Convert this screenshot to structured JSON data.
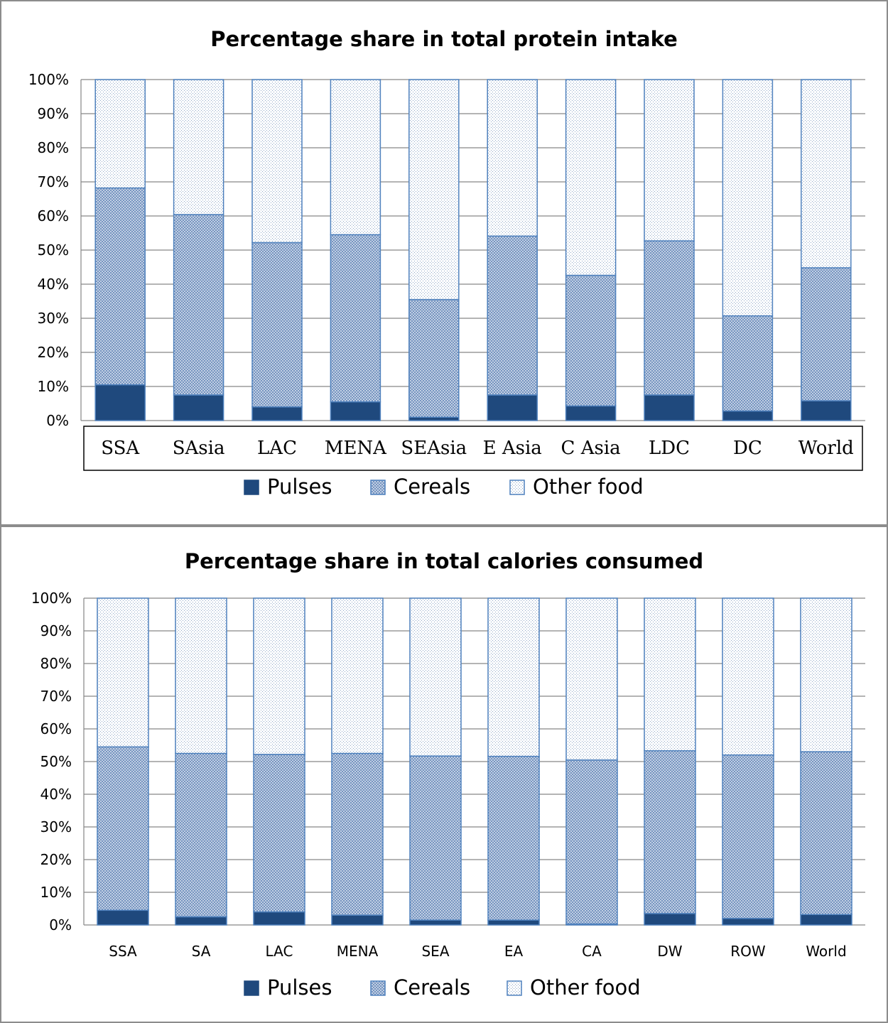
{
  "chart_data": [
    {
      "type": "bar",
      "stacked": true,
      "title": "Percentage share in total protein intake",
      "categories": [
        "SSA",
        "SAsia",
        "LAC",
        "MENA",
        "SEAsia",
        "E Asia",
        "C Asia",
        "LDC",
        "DC",
        "World"
      ],
      "series": [
        {
          "name": "Pulses",
          "values": [
            10.5,
            7.5,
            4,
            5.5,
            1,
            7.5,
            4.3,
            7.5,
            2.8,
            5.8
          ]
        },
        {
          "name": "Cereals",
          "values": [
            57.7,
            52.9,
            48.2,
            49,
            34.5,
            46.6,
            38.3,
            45.2,
            27.9,
            39
          ]
        },
        {
          "name": "Other food",
          "values": [
            31.8,
            39.6,
            47.8,
            45.5,
            64.5,
            45.9,
            57.4,
            47.3,
            69.3,
            55.2
          ]
        }
      ],
      "yticks": [
        "0%",
        "10%",
        "20%",
        "30%",
        "40%",
        "50%",
        "60%",
        "70%",
        "80%",
        "90%",
        "100%"
      ],
      "ylim": [
        0,
        100
      ],
      "grid": true,
      "legend": "bottom"
    },
    {
      "type": "bar",
      "stacked": true,
      "title": "Percentage share in total calories consumed",
      "categories": [
        "SSA",
        "SA",
        "LAC",
        "MENA",
        "SEA",
        "EA",
        "CA",
        "DW",
        "ROW",
        "World"
      ],
      "series": [
        {
          "name": "Pulses",
          "values": [
            4.5,
            2.5,
            4,
            3,
            1.5,
            1.5,
            0.3,
            3.5,
            2,
            3.2
          ]
        },
        {
          "name": "Cereals",
          "values": [
            50,
            50,
            48.2,
            49.5,
            50.2,
            50.1,
            50.2,
            49.8,
            50,
            49.8
          ]
        },
        {
          "name": "Other food",
          "values": [
            45.5,
            47.5,
            47.8,
            47.5,
            48.3,
            48.4,
            49.5,
            46.7,
            48,
            47
          ]
        }
      ],
      "yticks": [
        "0%",
        "10%",
        "20%",
        "30%",
        "40%",
        "50%",
        "60%",
        "70%",
        "80%",
        "90%",
        "100%"
      ],
      "ylim": [
        0,
        100
      ],
      "grid": true,
      "legend": "bottom"
    }
  ],
  "colors": {
    "pulses": "#1f497d",
    "bar_outline": "#4f81bd",
    "cereals_pattern": "#6f8fbd",
    "other_pattern": "#8aa3c4",
    "grid": "#868686"
  }
}
